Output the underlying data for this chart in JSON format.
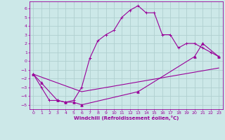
{
  "xlabel": "Windchill (Refroidissement éolien,°C)",
  "bg_color": "#cce8e8",
  "line_color": "#990099",
  "grid_color": "#b0d0d0",
  "xlim": [
    -0.5,
    23.5
  ],
  "ylim": [
    -5.5,
    6.8
  ],
  "xticks": [
    0,
    1,
    2,
    3,
    4,
    5,
    6,
    7,
    8,
    9,
    10,
    11,
    12,
    13,
    14,
    15,
    16,
    17,
    18,
    19,
    20,
    21,
    22,
    23
  ],
  "yticks": [
    -5,
    -4,
    -3,
    -2,
    -1,
    0,
    1,
    2,
    3,
    4,
    5,
    6
  ],
  "line1_x": [
    0,
    1,
    2,
    3,
    4,
    5,
    6,
    7,
    8,
    9,
    10,
    11,
    12,
    13,
    14,
    15,
    16,
    17,
    18,
    19,
    20,
    21,
    22,
    23
  ],
  "line1_y": [
    -1.5,
    -3.0,
    -4.5,
    -4.5,
    -4.7,
    -4.5,
    -3.0,
    0.3,
    2.3,
    3.0,
    3.5,
    5.0,
    5.8,
    6.3,
    5.5,
    5.5,
    3.0,
    3.0,
    1.5,
    2.0,
    2.0,
    1.5,
    1.0,
    0.5
  ],
  "line2_x": [
    0,
    1,
    3,
    4,
    5,
    6,
    13,
    20,
    21,
    23
  ],
  "line2_y": [
    -1.5,
    -2.5,
    -4.5,
    -4.7,
    -4.7,
    -5.0,
    -3.5,
    0.5,
    2.0,
    0.5
  ],
  "line3_x": [
    0,
    6,
    23
  ],
  "line3_y": [
    -1.5,
    -3.5,
    -0.8
  ]
}
